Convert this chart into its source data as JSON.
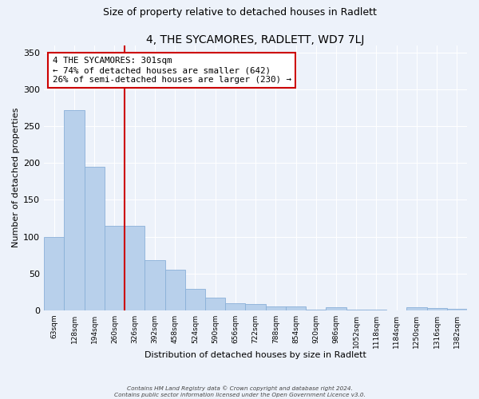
{
  "title": "4, THE SYCAMORES, RADLETT, WD7 7LJ",
  "subtitle": "Size of property relative to detached houses in Radlett",
  "xlabel": "Distribution of detached houses by size in Radlett",
  "ylabel": "Number of detached properties",
  "bar_labels": [
    "63sqm",
    "128sqm",
    "194sqm",
    "260sqm",
    "326sqm",
    "392sqm",
    "458sqm",
    "524sqm",
    "590sqm",
    "656sqm",
    "722sqm",
    "788sqm",
    "854sqm",
    "920sqm",
    "986sqm",
    "1052sqm",
    "1118sqm",
    "1184sqm",
    "1250sqm",
    "1316sqm",
    "1382sqm"
  ],
  "bar_values": [
    100,
    272,
    195,
    115,
    115,
    68,
    55,
    29,
    17,
    10,
    8,
    5,
    5,
    1,
    4,
    1,
    1,
    0,
    4,
    3,
    2
  ],
  "bar_color": "#b8d0eb",
  "bar_edge_color": "#8ab0d8",
  "vline_x": 3.5,
  "annotation_text": "4 THE SYCAMORES: 301sqm\n← 74% of detached houses are smaller (642)\n26% of semi-detached houses are larger (230) →",
  "annotation_box_color": "#ffffff",
  "annotation_box_edge": "#cc0000",
  "vline_color": "#cc0000",
  "ylim": [
    0,
    360
  ],
  "yticks": [
    0,
    50,
    100,
    150,
    200,
    250,
    300,
    350
  ],
  "footer_line1": "Contains HM Land Registry data © Crown copyright and database right 2024.",
  "footer_line2": "Contains public sector information licensed under the Open Government Licence v3.0.",
  "background_color": "#edf2fa",
  "grid_color": "#ffffff",
  "title_fontsize": 10,
  "subtitle_fontsize": 9,
  "ylabel_fontsize": 8,
  "xlabel_fontsize": 8
}
